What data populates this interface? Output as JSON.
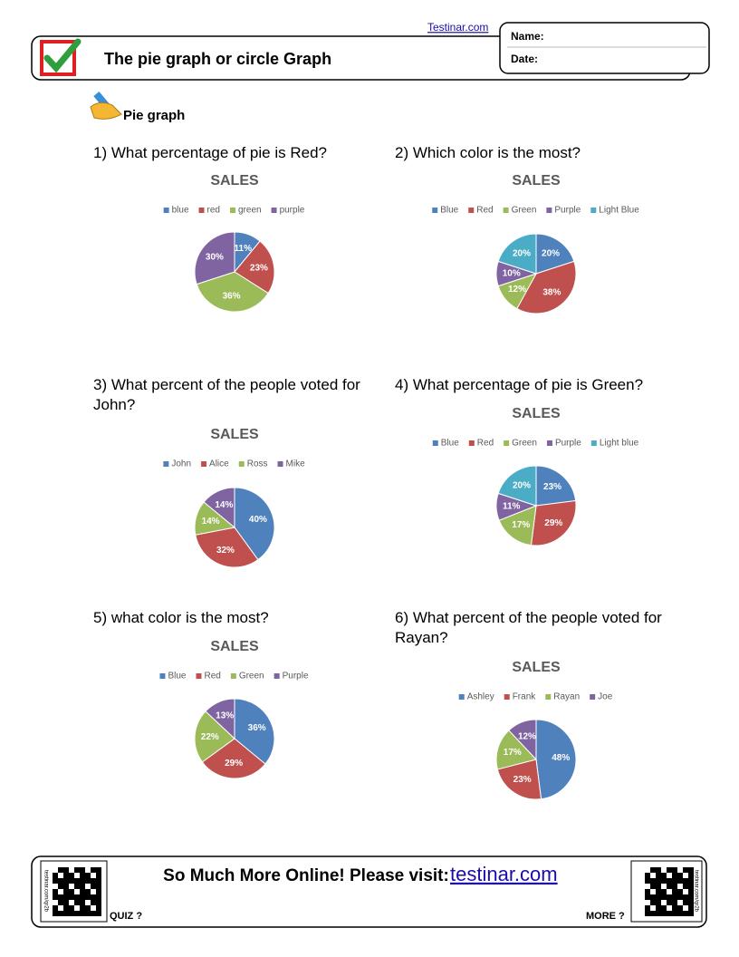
{
  "header": {
    "site": "Testinar.com",
    "title": "The pie graph or circle Graph",
    "name_label": "Name:",
    "date_label": "Date:"
  },
  "section": "Pie graph",
  "questions": [
    "1) What percentage of pie is Red?",
    "2) Which color is the most?",
    "3) What percent of the people voted for John?",
    "4) What percentage of pie is Green?",
    "5) what color is the most?",
    "6) What percent of the people voted for Rayan?"
  ],
  "chart_data": [
    {
      "type": "pie",
      "title": "SALES",
      "categories": [
        "blue",
        "red",
        "green",
        "purple"
      ],
      "values": [
        11,
        23,
        36,
        30
      ],
      "value_labels": [
        "11%",
        "23%",
        "36%",
        "30%"
      ],
      "colors": [
        "#4f81bd",
        "#c0504d",
        "#9bbb59",
        "#8064a2"
      ]
    },
    {
      "type": "pie",
      "title": "SALES",
      "categories": [
        "Blue",
        "Red",
        "Green",
        "Purple",
        "Light Blue"
      ],
      "values": [
        20,
        38,
        12,
        10,
        20
      ],
      "value_labels": [
        "20%",
        "38%",
        "12%",
        "10%",
        "20%"
      ],
      "colors": [
        "#4f81bd",
        "#c0504d",
        "#9bbb59",
        "#8064a2",
        "#4bacc6"
      ]
    },
    {
      "type": "pie",
      "title": "SALES",
      "categories": [
        "John",
        "Alice",
        "Ross",
        "Mike"
      ],
      "values": [
        40,
        32,
        14,
        14
      ],
      "value_labels": [
        "40%",
        "32%",
        "14%",
        "14%"
      ],
      "colors": [
        "#4f81bd",
        "#c0504d",
        "#9bbb59",
        "#8064a2"
      ]
    },
    {
      "type": "pie",
      "title": "SALES",
      "categories": [
        "Blue",
        "Red",
        "Green",
        "Purple",
        "Light blue"
      ],
      "values": [
        23,
        29,
        17,
        11,
        20
      ],
      "value_labels": [
        "23%",
        "29%",
        "17%",
        "11%",
        "20%"
      ],
      "colors": [
        "#4f81bd",
        "#c0504d",
        "#9bbb59",
        "#8064a2",
        "#4bacc6"
      ]
    },
    {
      "type": "pie",
      "title": "SALES",
      "categories": [
        "Blue",
        "Red",
        "Green",
        "Purple"
      ],
      "values": [
        36,
        29,
        22,
        13
      ],
      "value_labels": [
        "36%",
        "29%",
        "22%",
        "13%"
      ],
      "colors": [
        "#4f81bd",
        "#c0504d",
        "#9bbb59",
        "#8064a2"
      ]
    },
    {
      "type": "pie",
      "title": "SALES",
      "categories": [
        "Ashley",
        "Frank",
        "Rayan",
        "Joe"
      ],
      "values": [
        48,
        23,
        17,
        12
      ],
      "value_labels": [
        "48%",
        "23%",
        "17%",
        "12%"
      ],
      "colors": [
        "#4f81bd",
        "#c0504d",
        "#9bbb59",
        "#8064a2"
      ]
    }
  ],
  "footer": {
    "text": "So Much More Online! Please visit:",
    "link": "testinar.com",
    "quiz": "QUIZ ?",
    "more": "MORE ?",
    "qr_side": "testinar.com/qr2b"
  }
}
